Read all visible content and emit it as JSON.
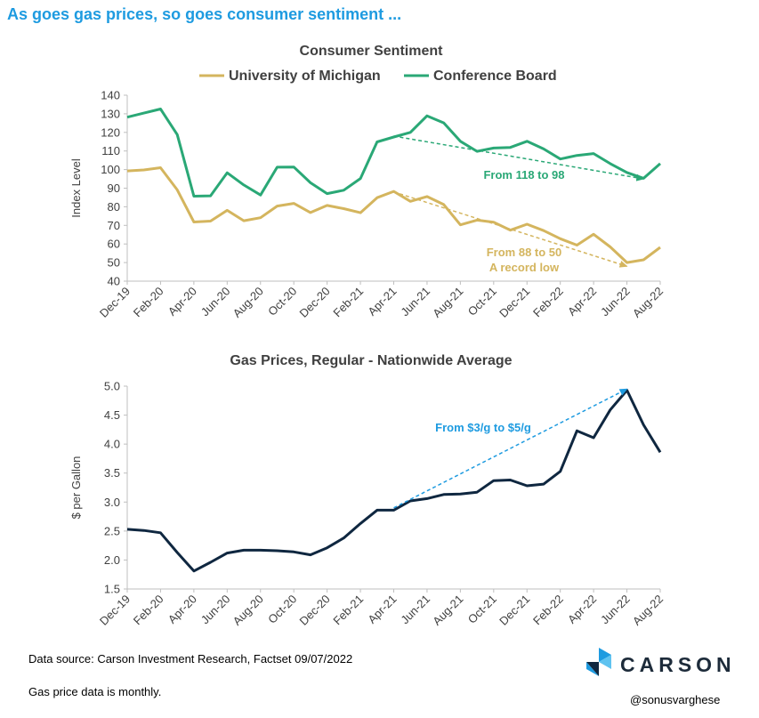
{
  "headline": "As goes gas prices, so goes consumer sentiment ...",
  "colors": {
    "headline": "#1e9be0",
    "umich": "#d4b55e",
    "conference": "#2aa876",
    "gas": "#0f2740",
    "gas_arrow": "#1e9be0"
  },
  "chart_data": [
    {
      "type": "line",
      "title": "Consumer Sentiment",
      "ylabel": "Index Level",
      "ylim": [
        40,
        140
      ],
      "yticks": [
        40,
        50,
        60,
        70,
        80,
        90,
        100,
        110,
        120,
        130,
        140
      ],
      "x_tick_labels": [
        "Dec-19",
        "Feb-20",
        "Apr-20",
        "Jun-20",
        "Aug-20",
        "Oct-20",
        "Dec-20",
        "Feb-21",
        "Apr-21",
        "Jun-21",
        "Aug-21",
        "Oct-21",
        "Dec-21",
        "Feb-22",
        "Apr-22",
        "Jun-22",
        "Aug-22"
      ],
      "x": [
        "Dec-19",
        "Jan-20",
        "Feb-20",
        "Mar-20",
        "Apr-20",
        "May-20",
        "Jun-20",
        "Jul-20",
        "Aug-20",
        "Sep-20",
        "Oct-20",
        "Nov-20",
        "Dec-20",
        "Jan-21",
        "Feb-21",
        "Mar-21",
        "Apr-21",
        "May-21",
        "Jun-21",
        "Jul-21",
        "Aug-21",
        "Sep-21",
        "Oct-21",
        "Nov-21",
        "Dec-21",
        "Jan-22",
        "Feb-22",
        "Mar-22",
        "Apr-22",
        "May-22",
        "Jun-22",
        "Jul-22",
        "Aug-22"
      ],
      "grid": false,
      "legend_position": "top",
      "series": [
        {
          "name": "University of Michigan",
          "color": "#d4b55e",
          "values": [
            99.3,
            99.8,
            101.0,
            89.1,
            71.8,
            72.3,
            78.1,
            72.5,
            74.1,
            80.4,
            81.8,
            76.9,
            80.7,
            79.0,
            76.8,
            84.9,
            88.3,
            82.9,
            85.5,
            81.2,
            70.3,
            72.8,
            71.7,
            67.4,
            70.6,
            67.2,
            62.8,
            59.4,
            65.2,
            58.4,
            50.0,
            51.5,
            58.2
          ]
        },
        {
          "name": "Conference Board",
          "color": "#2aa876",
          "values": [
            128.2,
            130.4,
            132.6,
            118.8,
            85.7,
            85.9,
            98.3,
            91.7,
            86.3,
            101.3,
            101.4,
            92.9,
            87.1,
            88.9,
            95.2,
            114.9,
            117.5,
            120.0,
            128.9,
            125.1,
            115.2,
            109.8,
            111.6,
            111.9,
            115.2,
            111.1,
            105.7,
            107.6,
            108.6,
            103.2,
            98.4,
            95.3,
            103.2
          ]
        }
      ],
      "annotations": [
        {
          "text": "From 118 to 98",
          "color": "#2aa876",
          "from": [
            "Apr-21",
            118
          ],
          "to": [
            "Jul-22",
            95
          ]
        },
        {
          "text": "From 88 to 50",
          "subtext": "A record low",
          "color": "#d4b55e",
          "from": [
            "Apr-21",
            88
          ],
          "to": [
            "Jun-22",
            48
          ]
        }
      ]
    },
    {
      "type": "line",
      "title": "Gas Prices, Regular - Nationwide Average",
      "ylabel": "$ per Gallon",
      "ylim": [
        1.5,
        5.0
      ],
      "yticks": [
        "1.5",
        "2.0",
        "2.5",
        "3.0",
        "3.5",
        "4.0",
        "4.5",
        "5.0"
      ],
      "x_tick_labels": [
        "Dec-19",
        "Feb-20",
        "Apr-20",
        "Jun-20",
        "Aug-20",
        "Oct-20",
        "Dec-20",
        "Feb-21",
        "Apr-21",
        "Jun-21",
        "Aug-21",
        "Oct-21",
        "Dec-21",
        "Feb-22",
        "Apr-22",
        "Jun-22",
        "Aug-22"
      ],
      "x": [
        "Dec-19",
        "Jan-20",
        "Feb-20",
        "Mar-20",
        "Apr-20",
        "May-20",
        "Jun-20",
        "Jul-20",
        "Aug-20",
        "Sep-20",
        "Oct-20",
        "Nov-20",
        "Dec-20",
        "Jan-21",
        "Feb-21",
        "Mar-21",
        "Apr-21",
        "May-21",
        "Jun-21",
        "Jul-21",
        "Aug-21",
        "Sep-21",
        "Oct-21",
        "Nov-21",
        "Dec-21",
        "Jan-22",
        "Feb-22",
        "Mar-22",
        "Apr-22",
        "May-22",
        "Jun-22",
        "Jul-22",
        "Aug-22"
      ],
      "grid": false,
      "series": [
        {
          "color": "#0f2740",
          "values": [
            2.53,
            2.51,
            2.47,
            2.13,
            1.81,
            1.96,
            2.12,
            2.17,
            2.17,
            2.16,
            2.14,
            2.09,
            2.21,
            2.38,
            2.63,
            2.86,
            2.86,
            3.02,
            3.06,
            3.13,
            3.14,
            3.17,
            3.37,
            3.38,
            3.28,
            3.31,
            3.53,
            4.23,
            4.11,
            4.59,
            4.93,
            4.33,
            3.86
          ]
        }
      ],
      "annotations": [
        {
          "text": "From $3/g to $5/g",
          "color": "#1e9be0",
          "from": [
            "Apr-21",
            2.9
          ],
          "to": [
            "Jun-22",
            4.95
          ]
        }
      ]
    }
  ],
  "footer": {
    "source": "Data source: Carson Investment Research, Factset   09/07/2022",
    "note": "Gas price data is monthly.",
    "handle": "@sonusvarghese"
  },
  "brand": {
    "name": "CARSON",
    "icon": "carson-logo-mark"
  }
}
